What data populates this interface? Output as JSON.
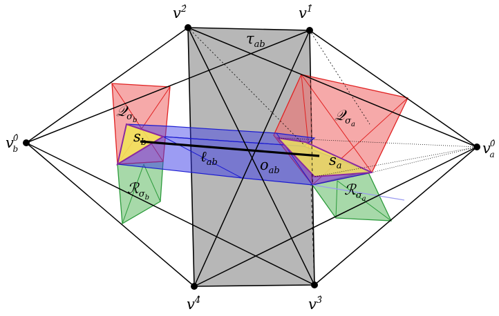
{
  "vertices": {
    "v0b": {
      "base": "v",
      "sup": "0̂",
      "sub": "b"
    },
    "v0a": {
      "base": "v",
      "sup": "0̂",
      "sub": "a"
    },
    "v1": {
      "base": "v",
      "sup": "1̂"
    },
    "v2": {
      "base": "v",
      "sup": "2̂"
    },
    "v3": {
      "base": "v",
      "sup": "3̂"
    },
    "v4": {
      "base": "v",
      "sup": "4̂"
    }
  },
  "labels": {
    "tau": {
      "base": "τ",
      "sub": "ab"
    },
    "ell": {
      "base": "ℓ",
      "sub": "ab"
    },
    "o": {
      "base": "o",
      "sub": "ab"
    },
    "sb": {
      "base": "s",
      "sub": "b"
    },
    "sa": {
      "base": "s",
      "sub": "a"
    },
    "Qb": {
      "base": "𝒬",
      "sub": "σ",
      "subsub": "b"
    },
    "Qa": {
      "base": "𝒬",
      "sub": "σ",
      "subsub": "a"
    },
    "Rb": {
      "base": "ℛ",
      "sub": "σ",
      "subsub": "b"
    },
    "Ra": {
      "base": "ℛ",
      "sub": "σ",
      "subsub": "a"
    }
  },
  "colors": {
    "tetra_fill": "#b3b3b3",
    "red": "#f07070",
    "red_edge": "#e02020",
    "green": "#6cc070",
    "green_edge": "#2a9a3a",
    "blue": "#3a3ae8",
    "blue_edge": "#1a1ad0",
    "yellow": "#f2e25a",
    "purple_edge": "#8a2aa0"
  }
}
